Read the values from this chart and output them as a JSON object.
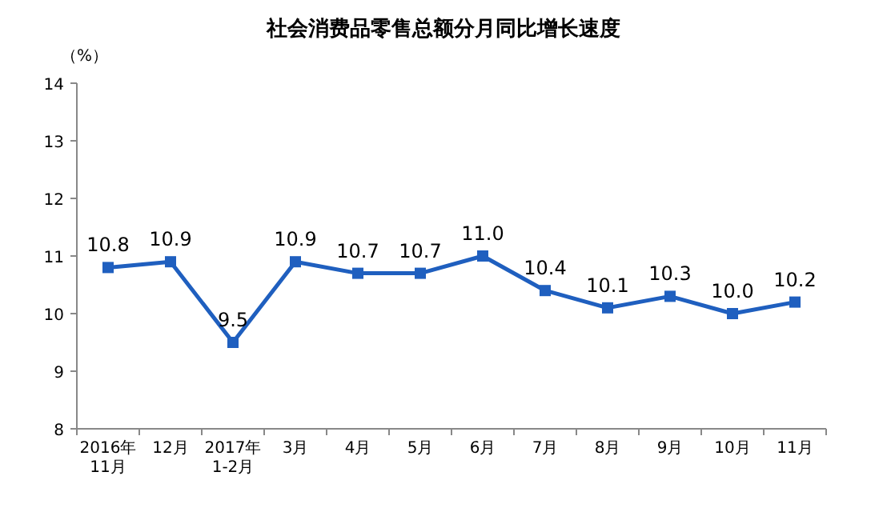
{
  "chart_data": {
    "type": "line",
    "title": "社会消费品零售总额分月同比增长速度",
    "ylabel": "（%）",
    "categories": [
      "2016年\n11月",
      "12月",
      "2017年\n1-2月",
      "3月",
      "4月",
      "5月",
      "6月",
      "7月",
      "8月",
      "9月",
      "10月",
      "11月"
    ],
    "values": [
      10.8,
      10.9,
      9.5,
      10.9,
      10.7,
      10.7,
      11.0,
      10.4,
      10.1,
      10.3,
      10.0,
      10.2
    ],
    "value_labels": [
      "10.8",
      "10.9",
      "9.5",
      "10.9",
      "10.7",
      "10.7",
      "11.0",
      "10.4",
      "10.1",
      "10.3",
      "10.0",
      "10.2"
    ],
    "color": "#1f5fbf",
    "marker": "square",
    "line_style": "solid",
    "ylim": [
      8,
      14
    ],
    "yticks": [
      8,
      9,
      10,
      11,
      12,
      13,
      14
    ]
  }
}
